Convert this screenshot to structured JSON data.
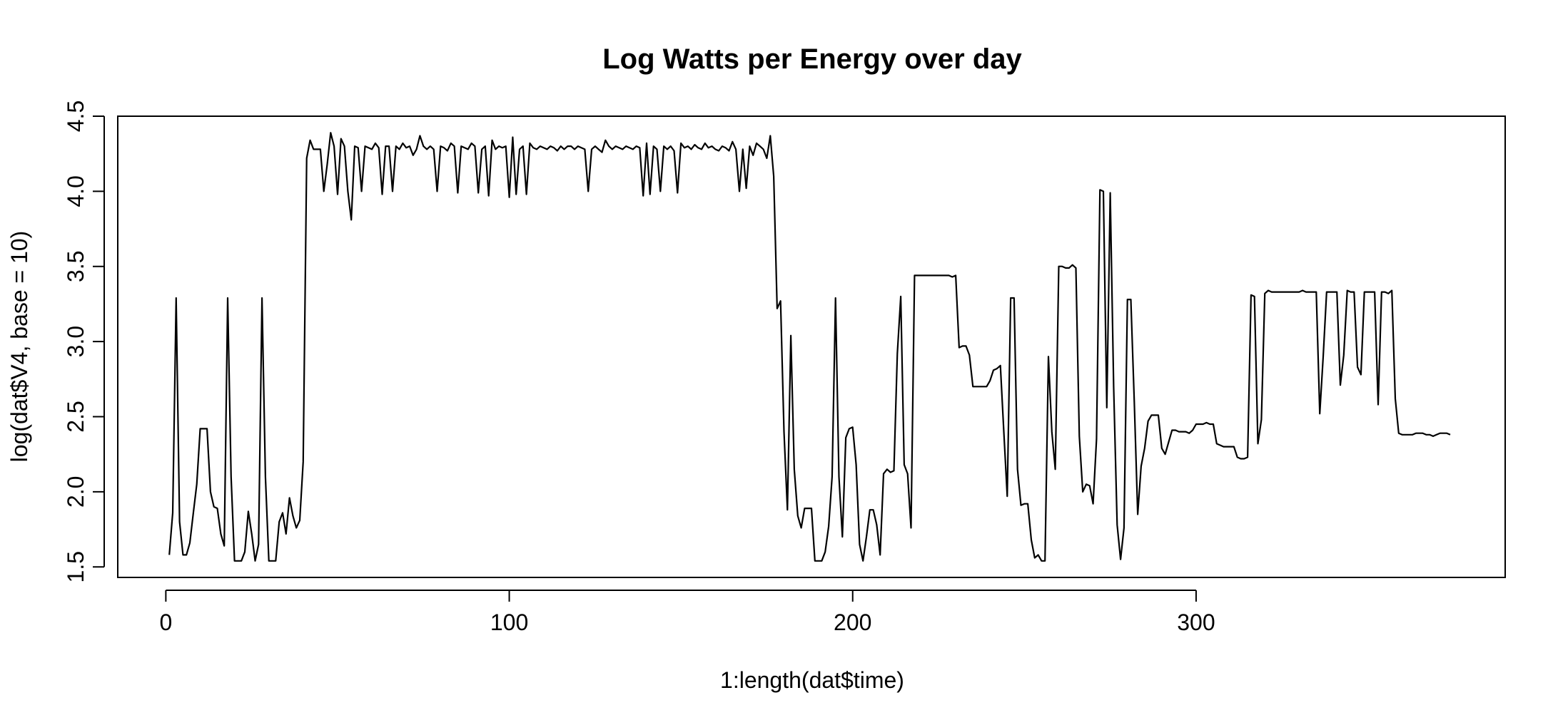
{
  "chart_data": {
    "type": "line",
    "title": "Log Watts per Energy over day",
    "xlabel": "1:length(dat$time)",
    "ylabel": "log(dat$V4, base = 10)",
    "xlim": [
      -14,
      390
    ],
    "ylim": [
      1.43,
      4.5
    ],
    "x_ticks": [
      0,
      100,
      200,
      300
    ],
    "x_tick_labels": [
      "0",
      "100",
      "200",
      "300"
    ],
    "y_ticks": [
      1.5,
      2.0,
      2.5,
      3.0,
      3.5,
      4.0,
      4.5
    ],
    "y_tick_labels": [
      "1.5",
      "2.0",
      "2.5",
      "3.0",
      "3.5",
      "4.0",
      "4.5"
    ],
    "grid": false,
    "legend": "none",
    "color": "#000000",
    "series": [
      {
        "x_start": 1,
        "values": [
          1.58,
          1.86,
          3.29,
          1.8,
          1.58,
          1.58,
          1.66,
          1.86,
          2.05,
          2.42,
          2.42,
          2.42,
          2.0,
          1.9,
          1.89,
          1.72,
          1.64,
          3.29,
          2.1,
          1.54,
          1.54,
          1.54,
          1.6,
          1.87,
          1.72,
          1.54,
          1.65,
          3.29,
          2.1,
          1.54,
          1.54,
          1.54,
          1.8,
          1.86,
          1.72,
          1.96,
          1.84,
          1.76,
          1.81,
          2.2,
          4.22,
          4.34,
          4.28,
          4.28,
          4.28,
          4.0,
          4.18,
          4.39,
          4.3,
          3.98,
          4.35,
          4.3,
          4.0,
          3.81,
          4.3,
          4.29,
          4.0,
          4.3,
          4.29,
          4.28,
          4.32,
          4.29,
          3.98,
          4.3,
          4.3,
          4.0,
          4.3,
          4.28,
          4.32,
          4.29,
          4.3,
          4.24,
          4.28,
          4.37,
          4.3,
          4.28,
          4.3,
          4.28,
          4.0,
          4.3,
          4.29,
          4.27,
          4.32,
          4.3,
          3.99,
          4.3,
          4.29,
          4.28,
          4.32,
          4.3,
          3.99,
          4.28,
          4.3,
          3.97,
          4.34,
          4.28,
          4.3,
          4.29,
          4.3,
          3.96,
          4.36,
          3.98,
          4.28,
          4.3,
          3.98,
          4.32,
          4.29,
          4.28,
          4.3,
          4.29,
          4.28,
          4.3,
          4.29,
          4.27,
          4.3,
          4.28,
          4.3,
          4.3,
          4.28,
          4.3,
          4.29,
          4.28,
          4.0,
          4.28,
          4.3,
          4.28,
          4.26,
          4.34,
          4.3,
          4.28,
          4.3,
          4.29,
          4.28,
          4.3,
          4.29,
          4.28,
          4.3,
          4.29,
          3.97,
          4.32,
          3.98,
          4.3,
          4.28,
          4.0,
          4.3,
          4.28,
          4.3,
          4.27,
          3.99,
          4.32,
          4.29,
          4.3,
          4.28,
          4.31,
          4.29,
          4.28,
          4.32,
          4.29,
          4.3,
          4.28,
          4.27,
          4.3,
          4.29,
          4.27,
          4.33,
          4.28,
          4.0,
          4.28,
          4.02,
          4.3,
          4.24,
          4.32,
          4.3,
          4.28,
          4.22,
          4.37,
          4.1,
          3.22,
          3.27,
          2.4,
          1.88,
          3.04,
          2.15,
          1.84,
          1.76,
          1.89,
          1.89,
          1.89,
          1.54,
          1.54,
          1.54,
          1.6,
          1.77,
          2.1,
          3.29,
          2.1,
          1.7,
          2.36,
          2.42,
          2.43,
          2.18,
          1.65,
          1.54,
          1.7,
          1.88,
          1.88,
          1.78,
          1.58,
          2.12,
          2.15,
          2.13,
          2.14,
          2.92,
          3.3,
          2.18,
          2.12,
          1.76,
          3.44,
          3.44,
          3.44,
          3.44,
          3.44,
          3.44,
          3.44,
          3.44,
          3.44,
          3.44,
          3.44,
          3.43,
          3.44,
          2.96,
          2.97,
          2.97,
          2.91,
          2.7,
          2.7,
          2.7,
          2.7,
          2.7,
          2.74,
          2.81,
          2.82,
          2.84,
          2.4,
          1.97,
          3.29,
          3.29,
          2.15,
          1.91,
          1.92,
          1.92,
          1.68,
          1.56,
          1.58,
          1.54,
          1.54,
          2.9,
          2.4,
          2.15,
          3.5,
          3.5,
          3.49,
          3.49,
          3.51,
          3.49,
          2.37,
          2.0,
          2.05,
          2.04,
          1.92,
          2.35,
          4.01,
          4.0,
          2.56,
          3.99,
          2.7,
          1.78,
          1.55,
          1.76,
          3.28,
          3.28,
          2.6,
          1.85,
          2.17,
          2.29,
          2.47,
          2.51,
          2.51,
          2.51,
          2.29,
          2.25,
          2.33,
          2.41,
          2.41,
          2.4,
          2.4,
          2.4,
          2.39,
          2.41,
          2.45,
          2.45,
          2.45,
          2.46,
          2.45,
          2.45,
          2.32,
          2.31,
          2.3,
          2.3,
          2.3,
          2.3,
          2.23,
          2.22,
          2.22,
          2.23,
          3.31,
          3.3,
          2.32,
          2.48,
          3.32,
          3.34,
          3.33,
          3.33,
          3.33,
          3.33,
          3.33,
          3.33,
          3.33,
          3.33,
          3.33,
          3.34,
          3.33,
          3.33,
          3.33,
          3.33,
          2.52,
          2.9,
          3.33,
          3.33,
          3.33,
          3.33,
          2.71,
          2.91,
          3.34,
          3.33,
          3.33,
          2.83,
          2.78,
          3.33,
          3.33,
          3.33,
          3.33,
          2.58,
          3.33,
          3.33,
          3.32,
          3.34,
          2.62,
          2.39,
          2.38,
          2.38,
          2.38,
          2.38,
          2.39,
          2.39,
          2.39,
          2.38,
          2.38,
          2.37,
          2.38,
          2.39,
          2.39,
          2.39,
          2.38
        ]
      }
    ]
  }
}
